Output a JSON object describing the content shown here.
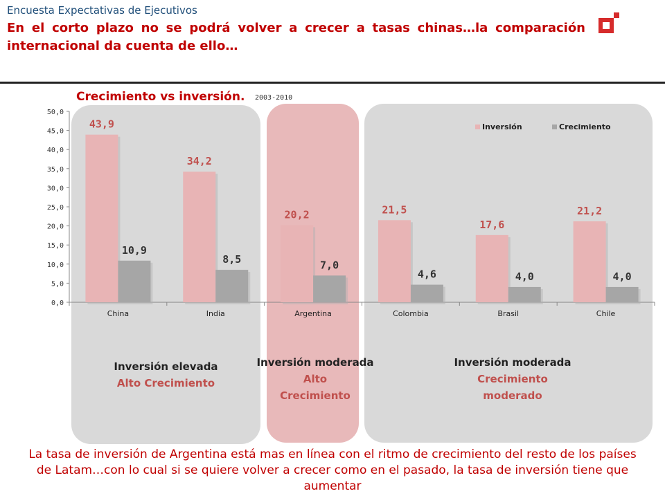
{
  "header": {
    "survey": "Encuesta Expectativas de Ejecutivos",
    "headline": "En el corto plazo no se podrá volver a crecer a tasas chinas…la comparación internacional da cuenta de ello…"
  },
  "colors": {
    "inversion": "#e8b4b5",
    "crecimiento": "#a6a6a6",
    "accent": "#c00000",
    "panel_gray": "#d9d9d9",
    "panel_pink": "#e8b9ba"
  },
  "chart_data": {
    "type": "bar",
    "title": "Crecimiento vs inversión.",
    "subtitle": "2003-2010",
    "categories": [
      "China",
      "India",
      "Argentina",
      "Colombia",
      "Brasil",
      "Chile"
    ],
    "series": [
      {
        "name": "Inversión",
        "values": [
          43.9,
          34.2,
          20.2,
          21.5,
          17.6,
          21.2
        ]
      },
      {
        "name": "Crecimiento",
        "values": [
          10.9,
          8.5,
          7.0,
          4.6,
          4.0,
          4.0
        ]
      }
    ],
    "data_labels": {
      "Inversión": [
        "43,9",
        "34,2",
        "20,2",
        "21,5",
        "17,6",
        "21,2"
      ],
      "Crecimiento": [
        "10,9",
        "8,5",
        "7,0",
        "4,6",
        "4,0",
        "4,0"
      ]
    },
    "ylim": [
      0,
      50
    ],
    "yticks": [
      "0,0",
      "5,0",
      "10,0",
      "15,0",
      "20,0",
      "25,0",
      "30,0",
      "35,0",
      "40,0",
      "45,0",
      "50,0"
    ],
    "legend_position": "top-right",
    "grid": false
  },
  "groups": [
    {
      "line1": "Inversión elevada",
      "line2": "Alto Crecimiento"
    },
    {
      "line1": "Inversión moderada",
      "line2": "Alto",
      "line3": "Crecimiento"
    },
    {
      "line1": "Inversión moderada",
      "line2": "Crecimiento",
      "line3": "moderado"
    }
  ],
  "footer": "La tasa de inversión de Argentina está mas en línea con el ritmo de crecimiento del resto de los países de Latam…con lo cual si se quiere volver a crecer como en el pasado, la tasa de inversión tiene que aumentar"
}
